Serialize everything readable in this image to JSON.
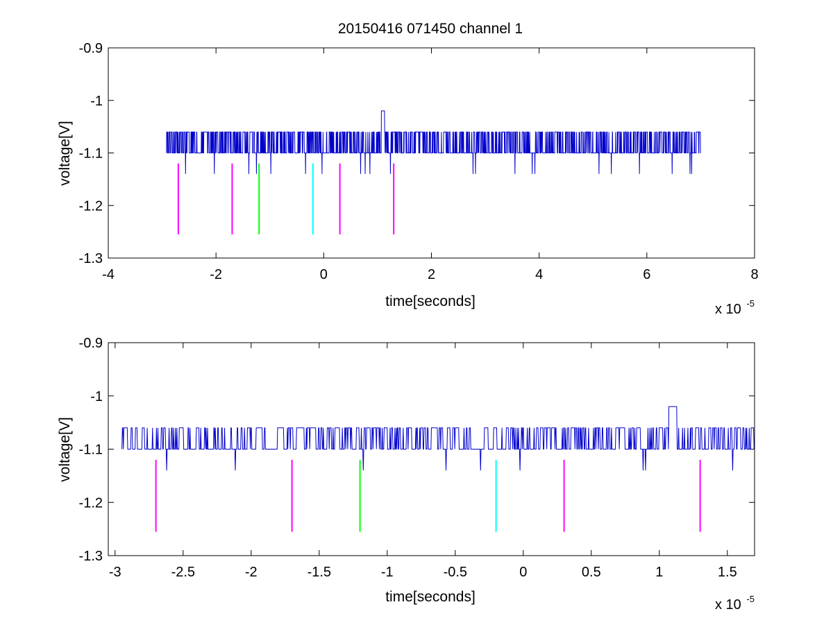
{
  "figure": {
    "title": "20150416 071450 channel 1",
    "background": "#ffffff",
    "signal_color": "#0000cc",
    "marker_colors": {
      "magenta": "#ff00ff",
      "green": "#00ff00",
      "cyan": "#00ffff"
    }
  },
  "chart_data": [
    {
      "type": "line",
      "title": "20150416 071450 channel 1",
      "xlabel": "time[seconds]",
      "ylabel": "voltage[V]",
      "x_scale_label": "x 10",
      "x_scale_exponent": "-5",
      "xlim": [
        -4,
        8
      ],
      "ylim": [
        -1.3,
        -0.9
      ],
      "y_reversed": true,
      "xticks": [
        -4,
        -2,
        0,
        2,
        4,
        6,
        8
      ],
      "xtick_labels": [
        "-4",
        "-2",
        "0",
        "2",
        "4",
        "6",
        "8"
      ],
      "yticks": [
        -0.9,
        -1,
        -1.1,
        -1.2,
        -1.3
      ],
      "ytick_labels": [
        "-0.9",
        "-1",
        "-1.1",
        "-1.2",
        "-1.3"
      ],
      "grid": false,
      "series": [
        {
          "color": "#0000cc",
          "x_range": [
            -2.92,
            7.0
          ],
          "baseline": -1.1,
          "levels": [
            -1.02,
            -1.06,
            -1.1,
            -1.14
          ],
          "description_values": {
            "min": -1.14,
            "max": -1.02,
            "peak_at": 1.1
          }
        }
      ],
      "markers": [
        {
          "x": -2.7,
          "color": "#ff00ff",
          "y_top": -1.12,
          "y_bottom": -1.255
        },
        {
          "x": -1.7,
          "color": "#ff00ff",
          "y_top": -1.12,
          "y_bottom": -1.255
        },
        {
          "x": -1.2,
          "color": "#00ff00",
          "y_top": -1.12,
          "y_bottom": -1.255
        },
        {
          "x": -0.2,
          "color": "#00ffff",
          "y_top": -1.12,
          "y_bottom": -1.255
        },
        {
          "x": 0.3,
          "color": "#ff00ff",
          "y_top": -1.12,
          "y_bottom": -1.255
        },
        {
          "x": 1.3,
          "color": "#ff00ff",
          "y_top": -1.12,
          "y_bottom": -1.255
        }
      ]
    },
    {
      "type": "line",
      "xlabel": "time[seconds]",
      "ylabel": "voltage[V]",
      "x_scale_label": "x 10",
      "x_scale_exponent": "-5",
      "xlim": [
        -3.05,
        1.7
      ],
      "ylim": [
        -1.3,
        -0.9
      ],
      "y_reversed": true,
      "xticks": [
        -3,
        -2.5,
        -2,
        -1.5,
        -1,
        -0.5,
        0,
        0.5,
        1,
        1.5
      ],
      "xtick_labels": [
        "-3",
        "-2.5",
        "-2",
        "-1.5",
        "-1",
        "-0.5",
        "0",
        "0.5",
        "1",
        "1.5"
      ],
      "yticks": [
        -0.9,
        -1,
        -1.1,
        -1.2,
        -1.3
      ],
      "ytick_labels": [
        "-0.9",
        "-1",
        "-1.1",
        "-1.2",
        "-1.3"
      ],
      "grid": false,
      "series": [
        {
          "color": "#0000cc",
          "x_range": [
            -2.95,
            1.7
          ],
          "baseline": -1.1,
          "levels": [
            -1.02,
            -1.06,
            -1.1,
            -1.14
          ],
          "description_values": {
            "min": -1.14,
            "max": -1.02,
            "peak_at": 1.1
          }
        }
      ],
      "markers": [
        {
          "x": -2.7,
          "color": "#ff00ff",
          "y_top": -1.12,
          "y_bottom": -1.255
        },
        {
          "x": -1.7,
          "color": "#ff00ff",
          "y_top": -1.12,
          "y_bottom": -1.255
        },
        {
          "x": -1.2,
          "color": "#00ff00",
          "y_top": -1.12,
          "y_bottom": -1.255
        },
        {
          "x": -0.2,
          "color": "#00ffff",
          "y_top": -1.12,
          "y_bottom": -1.255
        },
        {
          "x": 0.3,
          "color": "#ff00ff",
          "y_top": -1.12,
          "y_bottom": -1.255
        },
        {
          "x": 1.3,
          "color": "#ff00ff",
          "y_top": -1.12,
          "y_bottom": -1.255
        }
      ]
    }
  ]
}
